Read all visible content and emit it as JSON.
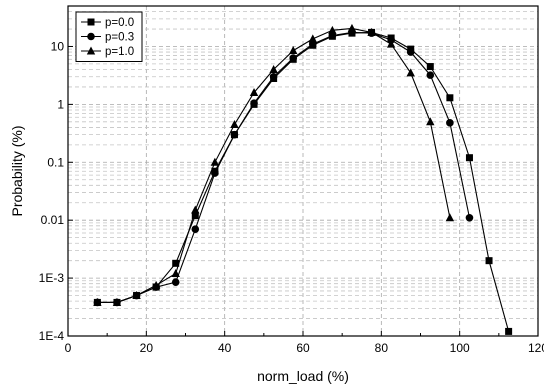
{
  "chart_data": {
    "type": "line",
    "xlabel": "norm_load (%)",
    "ylabel": "Probability (%)",
    "x_scale": "linear",
    "y_scale": "log",
    "xlim": [
      0,
      120
    ],
    "ylim": [
      0.0001,
      50
    ],
    "x_ticks": [
      0,
      20,
      40,
      60,
      80,
      100,
      120
    ],
    "x_tick_labels": [
      "0",
      "20",
      "40",
      "60",
      "80",
      "100",
      "120"
    ],
    "y_ticks": [
      0.0001,
      0.001,
      0.01,
      0.1,
      1,
      10
    ],
    "y_tick_labels": [
      "1E-4",
      "1E-3",
      "0.01",
      "0.1",
      "1",
      "10"
    ],
    "grid": true,
    "legend_position": "top-left",
    "series": [
      {
        "name": "p=0.0",
        "marker": "square",
        "x": [
          7.5,
          12.5,
          17.5,
          22.5,
          27.5,
          32.5,
          37.5,
          42.5,
          47.5,
          52.5,
          57.5,
          62.5,
          67.5,
          72.5,
          77.5,
          82.5,
          87.5,
          92.5,
          97.5,
          102.5,
          107.5,
          112.5
        ],
        "y": [
          0.00038,
          0.00038,
          0.0005,
          0.0007,
          0.0018,
          0.012,
          0.07,
          0.3,
          1.0,
          2.8,
          6.0,
          10.5,
          15.0,
          17.0,
          17.5,
          14.0,
          9.0,
          4.5,
          1.3,
          0.12,
          0.002,
          0.00012
        ]
      },
      {
        "name": "p=0.3",
        "marker": "circle",
        "x": [
          7.5,
          12.5,
          17.5,
          22.5,
          27.5,
          32.5,
          37.5,
          42.5,
          47.5,
          52.5,
          57.5,
          62.5,
          67.5,
          72.5,
          77.5,
          82.5,
          87.5,
          92.5,
          97.5,
          102.5
        ],
        "y": [
          0.00038,
          0.00038,
          0.0005,
          0.0007,
          0.00085,
          0.007,
          0.065,
          0.3,
          1.05,
          3.0,
          6.3,
          11.0,
          15.5,
          17.5,
          17.0,
          13.0,
          8.0,
          3.2,
          0.48,
          0.011
        ]
      },
      {
        "name": "p=1.0",
        "marker": "triangle",
        "x": [
          7.5,
          12.5,
          17.5,
          22.5,
          27.5,
          32.5,
          37.5,
          42.5,
          47.5,
          52.5,
          57.5,
          62.5,
          67.5,
          72.5,
          77.5,
          82.5,
          87.5,
          92.5,
          97.5
        ],
        "y": [
          0.00038,
          0.00038,
          0.0005,
          0.00075,
          0.0012,
          0.015,
          0.1,
          0.45,
          1.6,
          4.0,
          8.5,
          13.5,
          19.0,
          20.5,
          17.5,
          11.0,
          3.5,
          0.5,
          0.011
        ]
      }
    ]
  }
}
